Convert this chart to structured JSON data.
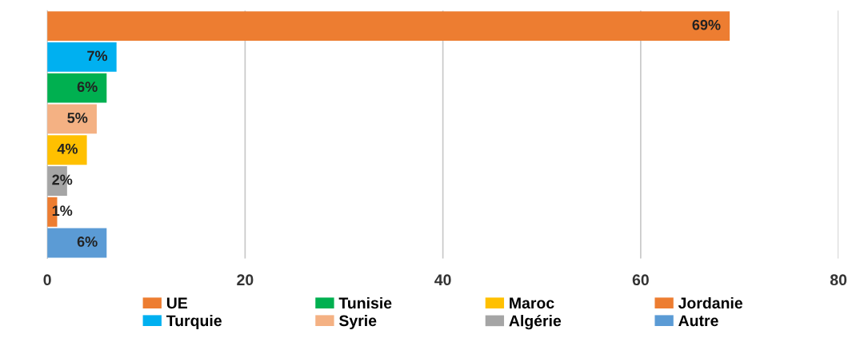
{
  "chart_data": {
    "type": "bar",
    "orientation": "horizontal",
    "categories": [
      null,
      null,
      null,
      null,
      null,
      null,
      null,
      null
    ],
    "series": [
      {
        "name": "UE",
        "color": "#ed7d31",
        "values": [
          69,
          null,
          null,
          null,
          null,
          null,
          null,
          null
        ],
        "value_labels": [
          "69%",
          null,
          null,
          null,
          null,
          null,
          null,
          null
        ]
      },
      {
        "name": "Turquie",
        "color": "#00b0f0",
        "values": [
          null,
          7,
          null,
          null,
          null,
          null,
          null,
          null
        ],
        "value_labels": [
          null,
          "7%",
          null,
          null,
          null,
          null,
          null,
          null
        ]
      },
      {
        "name": "Tunisie",
        "color": "#00b050",
        "values": [
          null,
          null,
          6,
          null,
          null,
          null,
          null,
          null
        ],
        "value_labels": [
          null,
          null,
          "6%",
          null,
          null,
          null,
          null,
          null
        ]
      },
      {
        "name": "Syrie",
        "color": "#f4b183",
        "values": [
          null,
          null,
          null,
          5,
          null,
          null,
          null,
          null
        ],
        "value_labels": [
          null,
          null,
          null,
          "5%",
          null,
          null,
          null,
          null
        ]
      },
      {
        "name": "Maroc",
        "color": "#ffc000",
        "values": [
          null,
          null,
          null,
          null,
          4,
          null,
          null,
          null
        ],
        "value_labels": [
          null,
          null,
          null,
          null,
          "4%",
          null,
          null,
          null
        ]
      },
      {
        "name": "Algérie",
        "color": "#a5a5a5",
        "values": [
          null,
          null,
          null,
          null,
          null,
          2,
          null,
          null
        ],
        "value_labels": [
          null,
          null,
          null,
          null,
          null,
          "2%",
          null,
          null
        ]
      },
      {
        "name": "Jordanie",
        "color": "#ed7d31",
        "values": [
          null,
          null,
          null,
          null,
          null,
          null,
          1,
          null
        ],
        "value_labels": [
          null,
          null,
          null,
          null,
          null,
          null,
          "1%",
          null
        ]
      },
      {
        "name": "Autre",
        "color": "#5b9bd5",
        "values": [
          null,
          null,
          null,
          null,
          null,
          null,
          null,
          6
        ],
        "value_labels": [
          null,
          null,
          null,
          null,
          null,
          null,
          null,
          "6%"
        ]
      }
    ],
    "xlim": [
      0,
      80
    ],
    "xticks": [
      0,
      20,
      40,
      60,
      80
    ],
    "grid": "x",
    "legend": "bottom",
    "tick_labels": "x"
  }
}
